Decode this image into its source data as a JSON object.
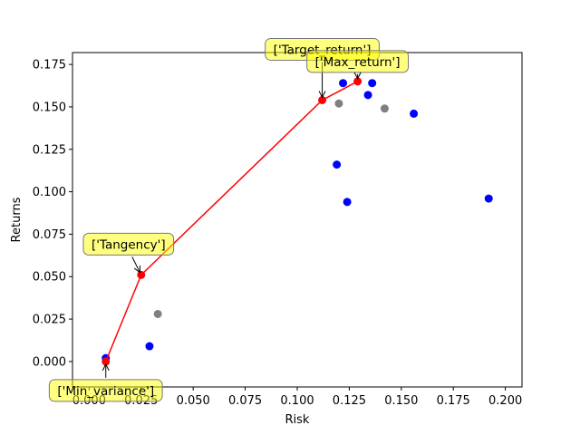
{
  "chart_data": {
    "type": "scatter",
    "xlabel": "Risk",
    "ylabel": "Returns",
    "xlim": [
      -0.008,
      0.208
    ],
    "ylim": [
      -0.015,
      0.182
    ],
    "x_ticks": [
      0.0,
      0.025,
      0.05,
      0.075,
      0.1,
      0.125,
      0.15,
      0.175,
      0.2
    ],
    "x_tick_labels": [
      "0.000",
      "0.025",
      "0.050",
      "0.075",
      "0.100",
      "0.125",
      "0.150",
      "0.175",
      "0.200"
    ],
    "y_ticks": [
      0.0,
      0.025,
      0.05,
      0.075,
      0.1,
      0.125,
      0.15,
      0.175
    ],
    "y_tick_labels": [
      "0.000",
      "0.025",
      "0.050",
      "0.075",
      "0.100",
      "0.125",
      "0.150",
      "0.175"
    ],
    "grid": false,
    "series": [
      {
        "color": "#0000ff",
        "points": [
          {
            "x": 0.008,
            "y": 0.002
          },
          {
            "x": 0.029,
            "y": 0.009
          },
          {
            "x": 0.119,
            "y": 0.116
          },
          {
            "x": 0.122,
            "y": 0.164
          },
          {
            "x": 0.124,
            "y": 0.094
          },
          {
            "x": 0.134,
            "y": 0.157
          },
          {
            "x": 0.136,
            "y": 0.164
          },
          {
            "x": 0.156,
            "y": 0.146
          },
          {
            "x": 0.192,
            "y": 0.096
          }
        ]
      },
      {
        "color": "#808080",
        "points": [
          {
            "x": 0.033,
            "y": 0.028
          },
          {
            "x": 0.12,
            "y": 0.152
          },
          {
            "x": 0.142,
            "y": 0.149
          }
        ]
      },
      {
        "color": "#ff0000",
        "line": true,
        "points": [
          {
            "x": 0.008,
            "y": 0.0
          },
          {
            "x": 0.025,
            "y": 0.051
          },
          {
            "x": 0.112,
            "y": 0.154
          },
          {
            "x": 0.129,
            "y": 0.165
          }
        ]
      }
    ],
    "annotations": [
      {
        "text": "['Min_variance']",
        "target": {
          "x": 0.008,
          "y": 0.0
        }
      },
      {
        "text": "['Tangency']",
        "target": {
          "x": 0.025,
          "y": 0.051
        }
      },
      {
        "text": "['Target_return']",
        "target": {
          "x": 0.112,
          "y": 0.154
        }
      },
      {
        "text": "['Max_return']",
        "target": {
          "x": 0.129,
          "y": 0.165
        }
      }
    ]
  }
}
